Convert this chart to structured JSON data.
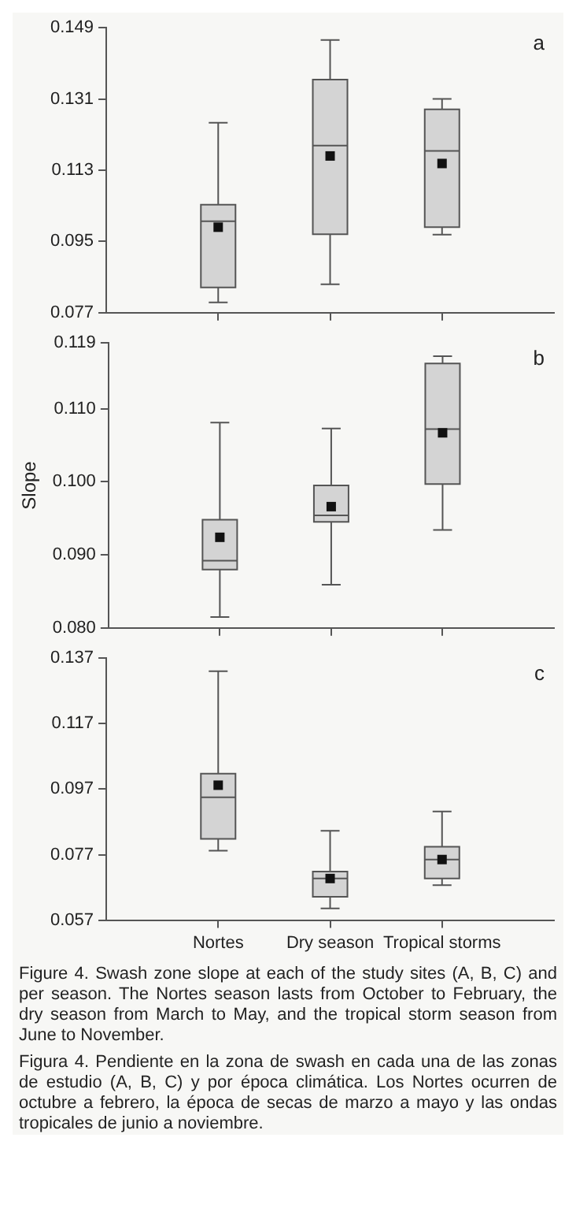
{
  "chart_data": [
    {
      "type": "box",
      "categories": [
        null,
        null,
        null
      ],
      "ylim": [
        0.077,
        0.149
      ],
      "yticks": [
        0.077,
        0.095,
        0.113,
        0.131,
        0.149
      ],
      "tick_labels": "y",
      "grid": false,
      "legend": false,
      "annotations": [
        "a"
      ],
      "boxes": [
        {
          "low": 0.0796,
          "q1": 0.0834,
          "median": 0.1001,
          "q3": 0.1043,
          "high": 0.125,
          "mean": 0.0986
        },
        {
          "low": 0.0842,
          "q1": 0.0968,
          "median": 0.1192,
          "q3": 0.1359,
          "high": 0.1459,
          "mean": 0.1166
        },
        {
          "low": 0.0967,
          "q1": 0.0986,
          "median": 0.1179,
          "q3": 0.1284,
          "high": 0.131,
          "mean": 0.1147
        }
      ]
    },
    {
      "type": "box",
      "categories": [
        null,
        null,
        null
      ],
      "ylabel": "Slope",
      "ylim": [
        0.08,
        0.119
      ],
      "yticks": [
        {
          "value": 0.08,
          "label": "0.080"
        },
        {
          "value": 0.09,
          "label": "0.090"
        },
        {
          "value": 0.1,
          "label": "0.100"
        },
        {
          "value": 0.11,
          "label": "0.110"
        },
        0.119
      ],
      "tick_labels": "y",
      "grid": false,
      "legend": false,
      "annotations": [
        "b"
      ],
      "boxes": [
        {
          "low": 0.0815,
          "q1": 0.088,
          "median": 0.0892,
          "q3": 0.0948,
          "high": 0.1081,
          "mean": 0.0924
        },
        {
          "low": 0.0859,
          "q1": 0.0945,
          "median": 0.0954,
          "q3": 0.0995,
          "high": 0.1073,
          "mean": 0.0966
        },
        {
          "low": 0.0934,
          "q1": 0.0997,
          "median": 0.1072,
          "q3": 0.1162,
          "high": 0.1172,
          "mean": 0.1067
        }
      ]
    },
    {
      "type": "box",
      "categories": [
        "Nortes",
        "Dry season",
        "Tropical storms"
      ],
      "ylim": [
        0.057,
        0.137
      ],
      "yticks": [
        0.057,
        0.077,
        0.097,
        0.117,
        0.137
      ],
      "grid": false,
      "legend": false,
      "annotations": [
        "c",
        "Figure 4. Swash zone slope at each of the study sites (A, B, C) and per season. The Nortes season lasts from October to February, the dry season from March to May, and the tropical storm season from June to November.",
        "Figura 4. Pendiente en la zona de swash en cada una de las zonas de estudio (A, B, C) y por época climática. Los Nortes ocurren de octubre a febrero, la época de secas de marzo a mayo y las ondas tropicales de junio a noviembre."
      ],
      "boxes": [
        {
          "low": 0.0782,
          "q1": 0.0818,
          "median": 0.0945,
          "q3": 0.1017,
          "high": 0.133,
          "mean": 0.0982
        },
        {
          "low": 0.0606,
          "q1": 0.0641,
          "median": 0.0697,
          "q3": 0.0718,
          "high": 0.0843,
          "mean": 0.0697
        },
        {
          "low": 0.0677,
          "q1": 0.0697,
          "median": 0.0755,
          "q3": 0.0794,
          "high": 0.0902,
          "mean": 0.0755
        }
      ]
    }
  ]
}
